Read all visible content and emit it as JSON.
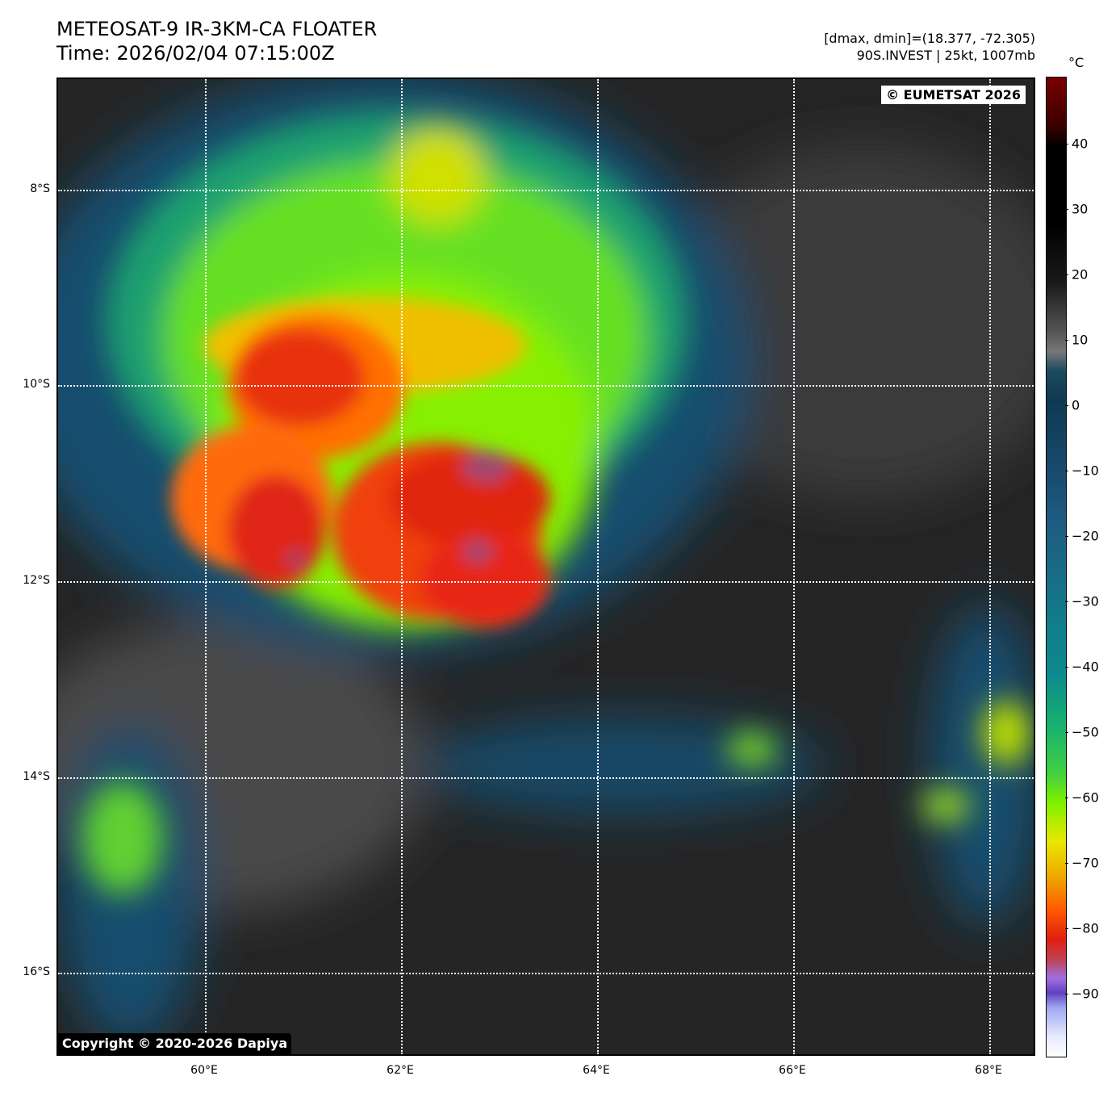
{
  "header": {
    "title": "METEOSAT-9 IR-3KM-CA FLOATER",
    "time": "Time: 2026/02/04 07:15:00Z",
    "dminmax": "[dmax, dmin]=(18.377, -72.305)",
    "storm": "90S.INVEST | 25kt, 1007mb"
  },
  "map": {
    "credit": "© EUMETSAT 2026",
    "copyright": "Copyright © 2020-2026 Dapiya",
    "lat_labels": [
      "8°S",
      "10°S",
      "12°S",
      "14°S",
      "16°S"
    ],
    "lon_labels": [
      "60°E",
      "62°E",
      "64°E",
      "66°E",
      "68°E"
    ],
    "extent": {
      "lon": [
        58.5,
        68.5
      ],
      "lat": [
        -16.85,
        -6.85
      ]
    }
  },
  "colorbar": {
    "unit": "°C",
    "range": [
      -100,
      50
    ],
    "ticks": [
      "40",
      "30",
      "20",
      "10",
      "0",
      "−10",
      "−20",
      "−30",
      "−40",
      "−50",
      "−60",
      "−70",
      "−80",
      "−90"
    ]
  }
}
